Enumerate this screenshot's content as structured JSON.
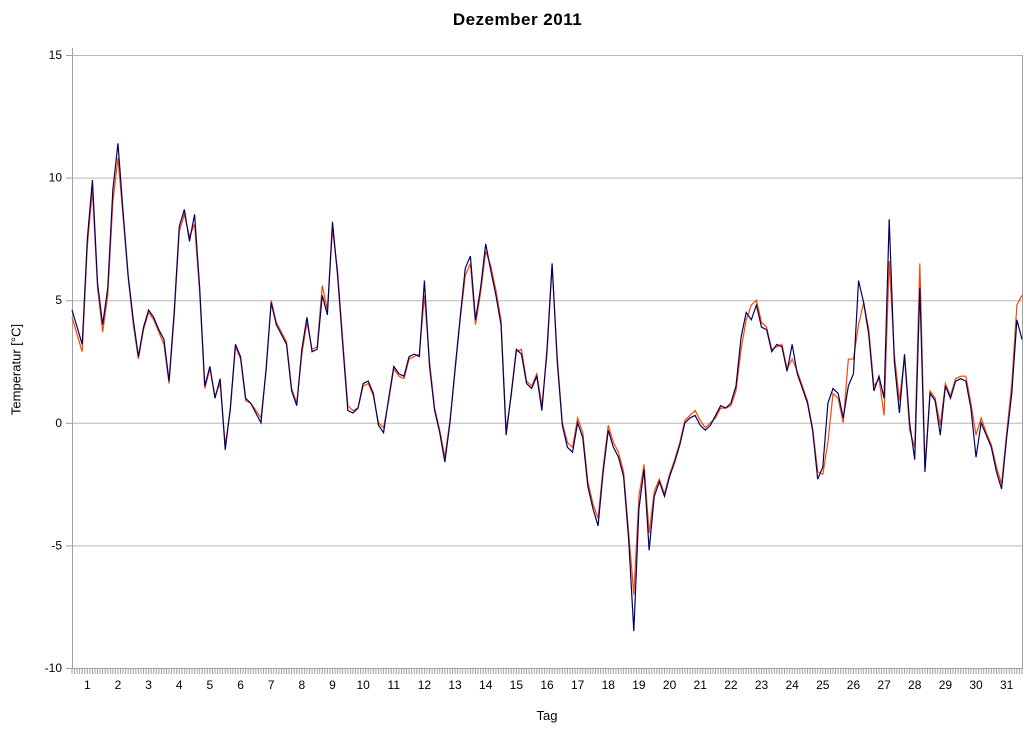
{
  "chart_data": {
    "type": "line",
    "title": "Dezember 2011",
    "xlabel": "Tag",
    "ylabel": "Temperatur [°C]",
    "xlim": [
      0,
      31
    ],
    "ylim": [
      -10,
      15
    ],
    "grid": true,
    "legend_position": "none",
    "x_ticks": [
      1,
      2,
      3,
      4,
      5,
      6,
      7,
      8,
      9,
      10,
      11,
      12,
      13,
      14,
      15,
      16,
      17,
      18,
      19,
      20,
      21,
      22,
      23,
      24,
      25,
      26,
      27,
      28,
      29,
      30,
      31
    ],
    "y_ticks": [
      15,
      10,
      5,
      0,
      -5,
      -10
    ],
    "x_minor_ticks_per_day": 12,
    "x_unit": "day of month (samples every 4 h)",
    "x_start_days": 0,
    "x_step_days": 0.1666667,
    "colors": {
      "series1": "#000066",
      "series2": "#ff4500",
      "gridline": "#b8b8b8",
      "axis": "#a0a0a0",
      "text": "#000000",
      "background": "#ffffff"
    },
    "series": [
      {
        "name": "series1-dark-blue",
        "color": "#000066",
        "values": [
          4.6,
          3.9,
          3.2,
          7.5,
          9.9,
          5.7,
          4.0,
          5.5,
          9.5,
          11.4,
          8.6,
          6.0,
          4.2,
          2.7,
          3.9,
          4.6,
          4.3,
          3.8,
          3.4,
          1.7,
          4.5,
          8.0,
          8.7,
          7.4,
          8.5,
          5.5,
          1.5,
          2.3,
          1.0,
          1.8,
          -1.1,
          0.6,
          3.2,
          2.7,
          1.0,
          0.8,
          0.4,
          0.0,
          2.2,
          4.9,
          4.0,
          3.6,
          3.2,
          1.3,
          0.7,
          3.0,
          4.3,
          2.9,
          3.0,
          5.2,
          4.4,
          8.2,
          6.0,
          3.2,
          0.5,
          0.4,
          0.6,
          1.6,
          1.7,
          1.2,
          -0.1,
          -0.4,
          1.0,
          2.3,
          2.0,
          1.9,
          2.7,
          2.8,
          2.7,
          5.8,
          2.3,
          0.5,
          -0.4,
          -1.6,
          0.0,
          2.2,
          4.3,
          6.3,
          6.8,
          4.2,
          5.5,
          7.3,
          6.2,
          5.2,
          4.0,
          -0.5,
          1.2,
          3.0,
          2.8,
          1.6,
          1.4,
          1.9,
          0.5,
          3.0,
          6.5,
          2.5,
          -0.1,
          -1.0,
          -1.2,
          0.0,
          -0.6,
          -2.6,
          -3.5,
          -4.2,
          -2.0,
          -0.3,
          -1.0,
          -1.4,
          -2.2,
          -4.8,
          -8.5,
          -3.5,
          -1.9,
          -5.2,
          -3.0,
          -2.4,
          -3.0,
          -2.2,
          -1.6,
          -0.9,
          0.0,
          0.2,
          0.3,
          -0.1,
          -0.3,
          -0.1,
          0.3,
          0.7,
          0.6,
          0.8,
          1.5,
          3.5,
          4.5,
          4.2,
          4.8,
          3.9,
          3.8,
          2.9,
          3.2,
          3.1,
          2.1,
          3.2,
          2.0,
          1.4,
          0.8,
          -0.3,
          -2.3,
          -1.8,
          0.8,
          1.4,
          1.2,
          0.2,
          1.5,
          2.0,
          5.8,
          4.9,
          3.6,
          1.3,
          1.9,
          1.0,
          8.3,
          2.5,
          0.4,
          2.8,
          0.0,
          -1.5,
          5.5,
          -2.0,
          1.2,
          0.9,
          -0.5,
          1.5,
          1.0,
          1.7,
          1.8,
          1.7,
          0.6,
          -1.4,
          0.0,
          -0.5,
          -1.0,
          -2.0,
          -2.7,
          -0.6,
          1.2,
          4.2,
          3.4
        ]
      },
      {
        "name": "series2-orange",
        "color": "#ff4500",
        "values": [
          4.3,
          3.6,
          2.9,
          7.2,
          9.5,
          5.5,
          3.7,
          5.2,
          9.0,
          10.8,
          8.4,
          5.9,
          4.0,
          2.6,
          3.8,
          4.5,
          4.2,
          3.7,
          3.2,
          1.6,
          4.3,
          7.8,
          8.5,
          7.6,
          8.1,
          5.3,
          1.4,
          2.2,
          1.1,
          1.6,
          -0.9,
          0.5,
          3.1,
          2.6,
          0.9,
          0.8,
          0.5,
          0.2,
          2.1,
          5.0,
          4.1,
          3.7,
          3.3,
          1.4,
          0.8,
          2.8,
          4.1,
          3.0,
          3.1,
          5.6,
          4.6,
          7.9,
          6.2,
          3.4,
          0.7,
          0.5,
          0.6,
          1.5,
          1.6,
          1.1,
          0.0,
          -0.2,
          0.9,
          2.2,
          1.9,
          1.8,
          2.6,
          2.7,
          2.8,
          5.2,
          2.5,
          0.6,
          -0.3,
          -1.4,
          0.1,
          2.1,
          4.2,
          6.0,
          6.5,
          4.0,
          5.3,
          7.0,
          6.4,
          5.4,
          4.2,
          -0.3,
          1.1,
          2.9,
          3.0,
          1.7,
          1.5,
          2.0,
          0.7,
          2.8,
          6.4,
          2.7,
          0.0,
          -0.8,
          -1.0,
          0.2,
          -0.4,
          -2.4,
          -3.3,
          -3.9,
          -1.8,
          -0.1,
          -0.8,
          -1.2,
          -2.0,
          -4.5,
          -7.0,
          -3.0,
          -1.7,
          -4.5,
          -2.8,
          -2.3,
          -2.9,
          -2.1,
          -1.5,
          -0.8,
          0.1,
          0.3,
          0.5,
          0.1,
          -0.2,
          0.0,
          0.2,
          0.6,
          0.6,
          0.7,
          1.3,
          3.0,
          4.2,
          4.8,
          5.0,
          4.1,
          3.9,
          3.0,
          3.1,
          3.2,
          2.2,
          2.6,
          2.1,
          1.5,
          0.9,
          -0.2,
          -2.0,
          -2.1,
          -0.8,
          1.2,
          1.0,
          0.0,
          2.6,
          2.6,
          4.0,
          4.9,
          3.8,
          1.5,
          1.8,
          0.3,
          6.6,
          2.8,
          0.9,
          2.7,
          -0.3,
          -1.0,
          6.5,
          -1.8,
          1.3,
          1.0,
          -0.1,
          1.6,
          1.1,
          1.8,
          1.9,
          1.9,
          0.8,
          -0.5,
          0.2,
          -0.4,
          -0.9,
          -1.8,
          -2.5,
          -0.4,
          1.6,
          4.8,
          5.2
        ]
      }
    ]
  }
}
